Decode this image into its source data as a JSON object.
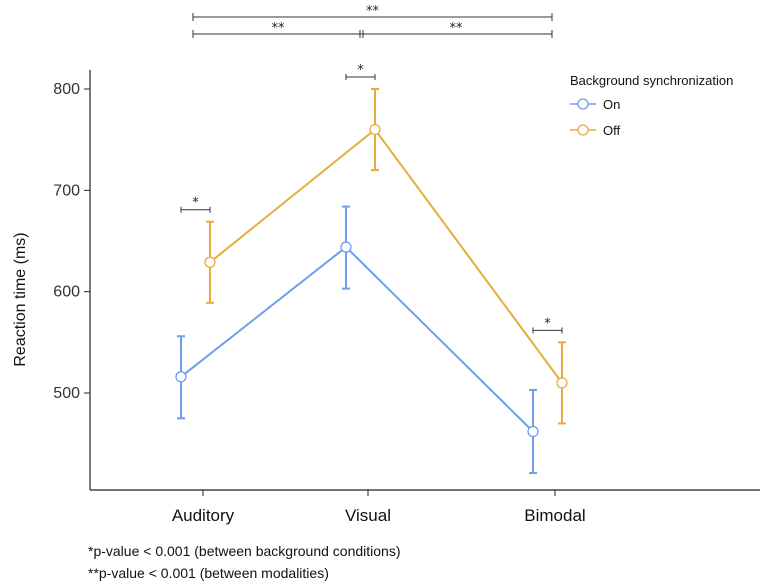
{
  "chart_data": {
    "type": "line",
    "categories": [
      "Auditory",
      "Visual",
      "Bimodal"
    ],
    "ylabel": "Reaction time (ms)",
    "xlabel": "",
    "ylim": [
      410,
      800
    ],
    "yticks": [
      500,
      600,
      700,
      800
    ],
    "legend": {
      "title": "Background synchronization",
      "placement": "top-right"
    },
    "series": [
      {
        "name": "On",
        "color": "#6d9eeb",
        "values": [
          516,
          644,
          462
        ],
        "error_low": [
          475,
          603,
          421
        ],
        "error_high": [
          556,
          684,
          503
        ]
      },
      {
        "name": "Off",
        "color": "#e6ac3e",
        "values": [
          629,
          760,
          510
        ],
        "error_low": [
          589,
          720,
          470
        ],
        "error_high": [
          669,
          800,
          550
        ]
      }
    ],
    "significance": {
      "between_conditions": {
        "label": "*",
        "categories": [
          "Auditory",
          "Visual",
          "Bimodal"
        ]
      },
      "between_modalities": [
        {
          "label": "**",
          "from": "Auditory",
          "to": "Bimodal"
        },
        {
          "label": "**",
          "from": "Auditory",
          "to": "Visual"
        },
        {
          "label": "**",
          "from": "Visual",
          "to": "Bimodal"
        }
      ]
    }
  },
  "footnotes": [
    "*p-value < 0.001 (between background conditions)",
    "**p-value < 0.001 (between modalities)"
  ]
}
